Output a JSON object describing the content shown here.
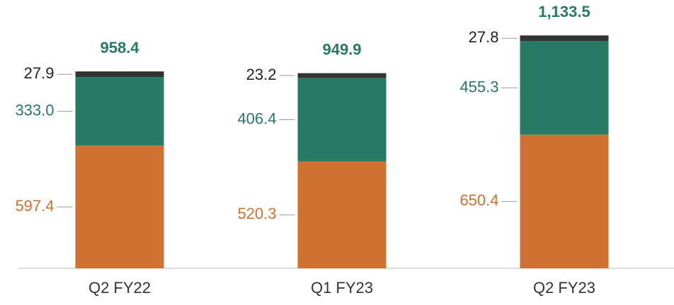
{
  "chart_data": {
    "type": "stacked_bar",
    "categories": [
      "Q2 FY22",
      "Q1 FY23",
      "Q2 FY23"
    ],
    "series": [
      {
        "color": "#cf7130",
        "values": [
          597.4,
          520.3,
          650.4
        ],
        "value_labels": [
          "597.4",
          "520.3",
          "650.4"
        ]
      },
      {
        "color": "#277a63",
        "values": [
          333.0,
          406.4,
          455.3
        ],
        "value_labels": [
          "333.0",
          "406.4",
          "455.3"
        ]
      },
      {
        "color": "#333333",
        "values": [
          27.9,
          23.2,
          27.8
        ],
        "value_labels": [
          "27.9",
          "23.2",
          "27.8"
        ]
      }
    ],
    "totals": [
      958.4,
      949.9,
      1133.5
    ],
    "total_labels": [
      "958.4",
      "949.9",
      "1,133.5"
    ],
    "total_color": "#277a63",
    "ylim": [
      0,
      1306
    ]
  }
}
